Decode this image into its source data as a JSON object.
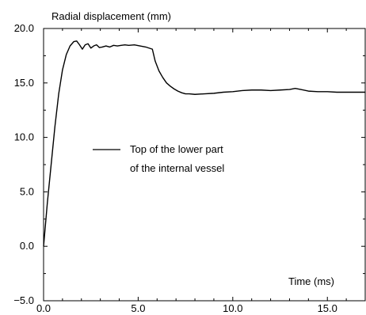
{
  "chart_data": {
    "type": "line",
    "ylabel": "Radial displacement (mm)",
    "xlabel": "Time (ms)",
    "xlim": [
      0,
      17
    ],
    "ylim": [
      -5,
      20
    ],
    "x_ticks": [
      0,
      5,
      10,
      15
    ],
    "x_tick_labels": [
      "0.0",
      "5.0",
      "10.0",
      "15.0"
    ],
    "y_ticks": [
      -5,
      0,
      5,
      10,
      15,
      20
    ],
    "y_tick_labels": [
      "−5.0",
      "0.0",
      "5.0",
      "10.0",
      "15.0",
      "20.0"
    ],
    "grid": false,
    "legend_position": "center-left",
    "series": [
      {
        "name": "Top of the lower part of the internal vessel",
        "legend_lines": [
          "Top of the lower part",
          "of the internal vessel"
        ],
        "color": "#000000",
        "x": [
          0.0,
          0.2,
          0.4,
          0.6,
          0.8,
          1.0,
          1.2,
          1.4,
          1.6,
          1.75,
          1.9,
          2.05,
          2.2,
          2.35,
          2.5,
          2.65,
          2.8,
          2.95,
          3.1,
          3.3,
          3.5,
          3.7,
          3.9,
          4.1,
          4.3,
          4.5,
          4.8,
          5.1,
          5.4,
          5.75,
          5.9,
          6.1,
          6.3,
          6.5,
          6.7,
          6.9,
          7.1,
          7.3,
          7.5,
          7.7,
          8.0,
          8.5,
          9.0,
          9.5,
          10.0,
          10.5,
          11.0,
          11.5,
          12.0,
          12.5,
          13.0,
          13.3,
          13.6,
          14.0,
          14.5,
          15.0,
          15.5,
          16.0,
          17.0
        ],
        "y": [
          0.0,
          4.0,
          7.5,
          11.0,
          14.0,
          16.2,
          17.6,
          18.4,
          18.8,
          18.85,
          18.5,
          18.1,
          18.5,
          18.6,
          18.2,
          18.4,
          18.5,
          18.25,
          18.3,
          18.4,
          18.3,
          18.45,
          18.4,
          18.45,
          18.5,
          18.45,
          18.5,
          18.4,
          18.3,
          18.1,
          17.0,
          16.1,
          15.5,
          15.0,
          14.7,
          14.45,
          14.25,
          14.1,
          14.0,
          14.0,
          13.95,
          14.0,
          14.05,
          14.15,
          14.2,
          14.3,
          14.35,
          14.35,
          14.3,
          14.35,
          14.4,
          14.5,
          14.4,
          14.25,
          14.2,
          14.2,
          14.15,
          14.15,
          14.15
        ]
      }
    ]
  }
}
